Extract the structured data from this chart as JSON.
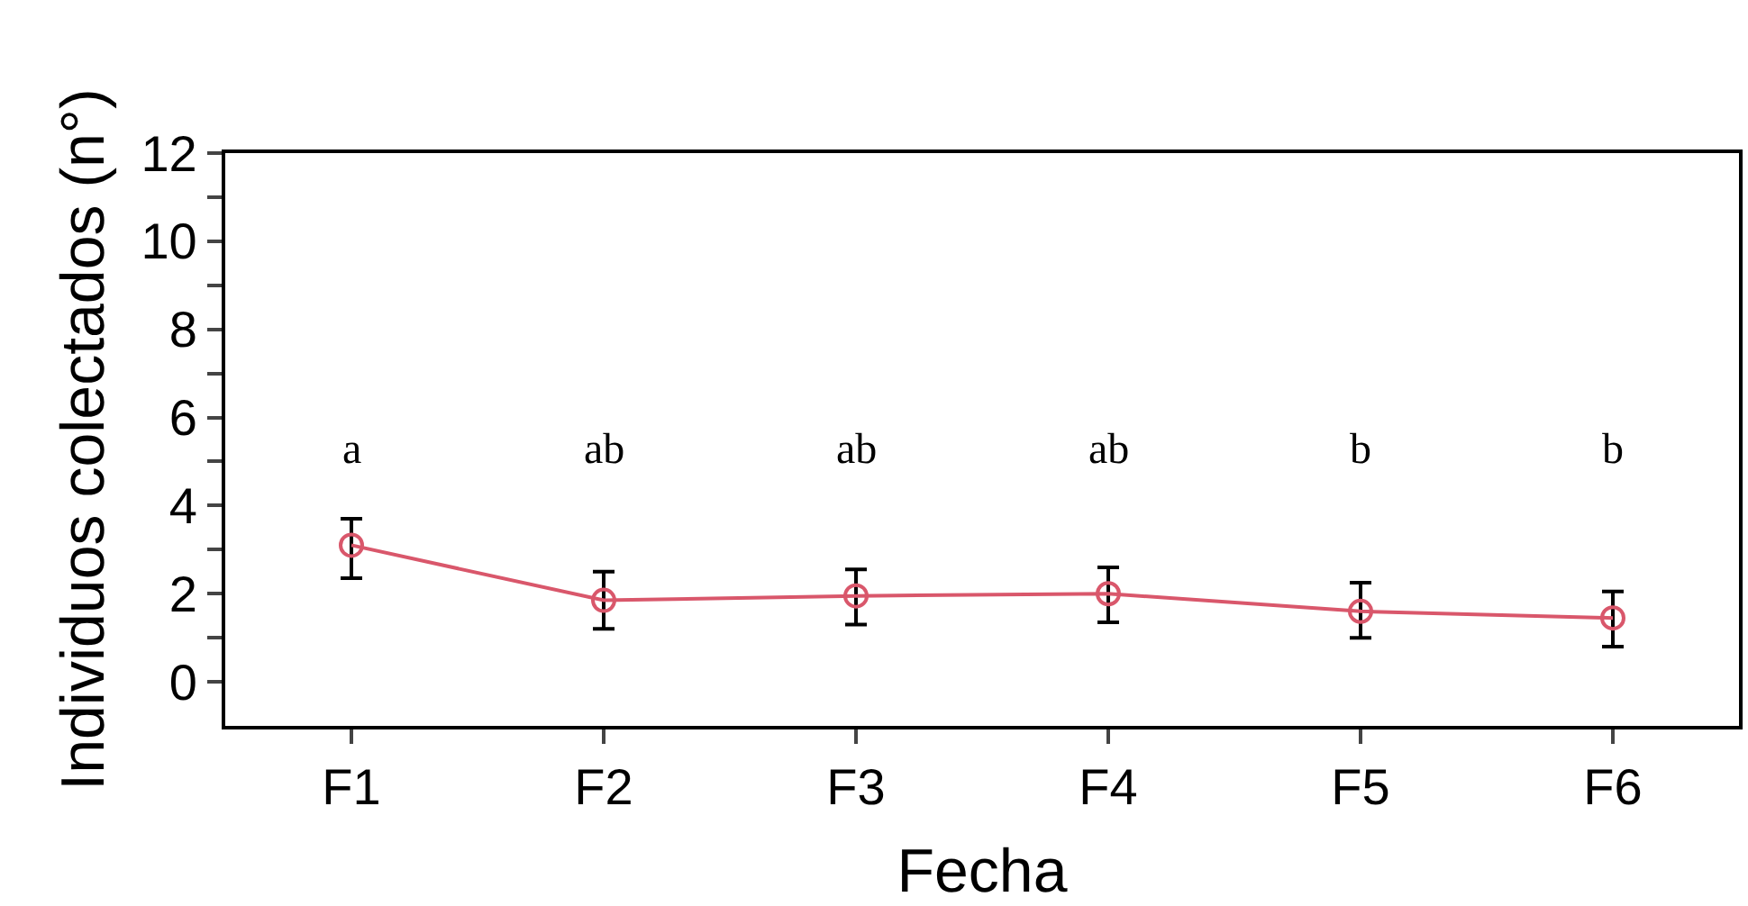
{
  "chart_data": {
    "type": "line",
    "xlabel": "Fecha",
    "ylabel": "Individuos colectados (n°)",
    "categories": [
      "F1",
      "F2",
      "F3",
      "F4",
      "F5",
      "F6"
    ],
    "series": [
      {
        "color": "#d9576b",
        "values": [
          3.1,
          1.85,
          1.95,
          2.0,
          1.6,
          1.45
        ],
        "errors": [
          [
            2.35,
            3.7
          ],
          [
            1.2,
            2.5
          ],
          [
            1.3,
            2.55
          ],
          [
            1.35,
            2.6
          ],
          [
            1.0,
            2.25
          ],
          [
            0.8,
            2.05
          ]
        ]
      }
    ],
    "ylim": [
      -1,
      12
    ],
    "yticks": [
      0,
      {
        "value": 1,
        "label": null
      },
      2,
      {
        "value": 3,
        "label": null
      },
      4,
      {
        "value": 5,
        "label": null
      },
      6,
      {
        "value": 7,
        "label": null
      },
      8,
      {
        "value": 9,
        "label": null
      },
      10,
      {
        "value": 11,
        "label": null
      },
      12
    ],
    "annotations": [
      "a",
      "ab",
      "ab",
      "ab",
      "b",
      "b"
    ],
    "grid": false,
    "legend": false,
    "marker": "circle",
    "line_style": "solid"
  }
}
